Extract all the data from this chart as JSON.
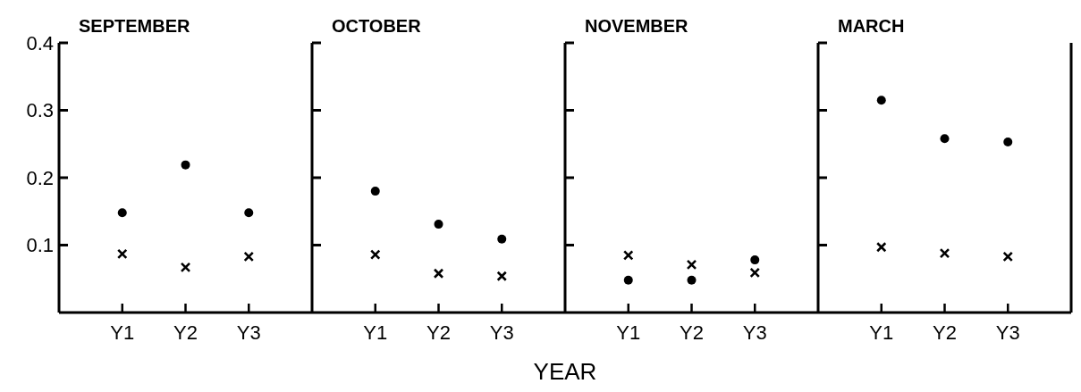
{
  "chart_data": [
    {
      "type": "scatter",
      "title": "SEPTEMBER",
      "categories": [
        "Y1",
        "Y2",
        "Y3"
      ],
      "ylim": [
        0,
        0.4
      ],
      "yticks": [
        0.1,
        0.2,
        0.3,
        0.4
      ],
      "grid": false,
      "series": [
        {
          "color": "#000000",
          "marker": "circle",
          "values": [
            0.148,
            0.219,
            0.148
          ]
        },
        {
          "color": "#000000",
          "marker": "cross",
          "values": [
            0.087,
            0.067,
            0.083
          ]
        }
      ]
    },
    {
      "type": "scatter",
      "title": "OCTOBER",
      "xlabel": "YEAR",
      "categories": [
        "Y1",
        "Y2",
        "Y3"
      ],
      "ylim": [
        0,
        0.4
      ],
      "yticks": [
        0.1,
        0.2,
        0.3,
        0.4
      ],
      "tick_labels": "x",
      "grid": false,
      "series": [
        {
          "color": "#000000",
          "marker": "circle",
          "values": [
            0.18,
            0.131,
            0.109
          ]
        },
        {
          "color": "#000000",
          "marker": "cross",
          "values": [
            0.086,
            0.058,
            0.054
          ]
        }
      ]
    },
    {
      "type": "scatter",
      "title": "NOVEMBER",
      "categories": [
        "Y1",
        "Y2",
        "Y3"
      ],
      "ylim": [
        0,
        0.4
      ],
      "yticks": [
        0.1,
        0.2,
        0.3,
        0.4
      ],
      "tick_labels": "x",
      "grid": false,
      "series": [
        {
          "color": "#000000",
          "marker": "circle",
          "values": [
            0.048,
            0.048,
            0.078
          ]
        },
        {
          "color": "#000000",
          "marker": "cross",
          "values": [
            0.085,
            0.071,
            0.059
          ]
        }
      ]
    },
    {
      "type": "scatter",
      "title": "MARCH",
      "categories": [
        "Y1",
        "Y2",
        "Y3"
      ],
      "ylim": [
        0,
        0.4
      ],
      "yticks": [
        0.1,
        0.2,
        0.3,
        0.4
      ],
      "tick_labels": "x",
      "grid": false,
      "series": [
        {
          "color": "#000000",
          "marker": "circle",
          "values": [
            0.315,
            0.258,
            0.253
          ]
        },
        {
          "color": "#000000",
          "marker": "cross",
          "values": [
            0.097,
            0.088,
            0.083
          ]
        }
      ]
    }
  ]
}
